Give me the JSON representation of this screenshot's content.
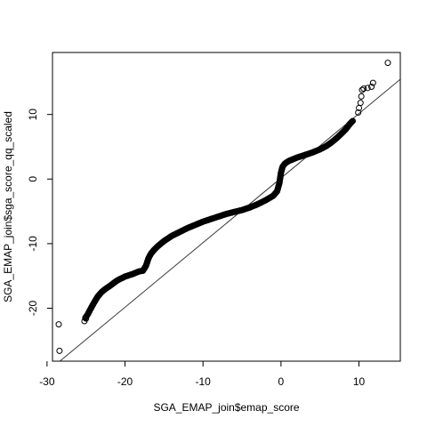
{
  "chart_data": {
    "type": "scatter",
    "title": "",
    "xlabel": "SGA_EMAP_join$emap_score",
    "ylabel": "SGA_EMAP_join$sga_score_qq_scaled",
    "xlim": [
      -29.3,
      15.3
    ],
    "ylim": [
      -28.2,
      19.6
    ],
    "x_ticks": [
      -30,
      -20,
      -10,
      0,
      10
    ],
    "x_tick_labels": [
      "-30",
      "-20",
      "-10",
      "0",
      "10"
    ],
    "y_ticks": [
      -20,
      -10,
      0,
      10
    ],
    "y_tick_labels": [
      "-20",
      "-10",
      "0",
      "10"
    ],
    "grid": false,
    "legend": "none",
    "marker": "open-circle",
    "marker_color": "#000000",
    "reference_line": {
      "slope": 1.0,
      "intercept": 0.15,
      "color": "#3a3a3a"
    },
    "qq_curve": {
      "x": [
        -25.1,
        -24.8,
        -24.5,
        -24.0,
        -23.5,
        -23.0,
        -22.5,
        -22.0,
        -21.0,
        -20.0,
        -19.0,
        -18.2,
        -17.7,
        -17.3,
        -17.0,
        -16.7,
        -16.3,
        -15.8,
        -15.0,
        -14.0,
        -13.0,
        -12.0,
        -11.0,
        -10.0,
        -9.0,
        -8.0,
        -7.0,
        -6.0,
        -5.0,
        -4.0,
        -3.0,
        -2.0,
        -1.0,
        -0.5,
        -0.2,
        0.0,
        0.2,
        0.5,
        1.0,
        2.0,
        3.0,
        4.0,
        5.0,
        5.8,
        6.5,
        7.2,
        7.8,
        8.3,
        8.8,
        9.2
      ],
      "y": [
        -21.5,
        -21.0,
        -20.3,
        -19.2,
        -18.2,
        -17.5,
        -17.0,
        -16.6,
        -15.7,
        -15.1,
        -14.7,
        -14.3,
        -14.2,
        -13.4,
        -12.3,
        -11.6,
        -11.0,
        -10.4,
        -9.6,
        -8.8,
        -8.2,
        -7.6,
        -7.1,
        -6.6,
        -6.2,
        -5.8,
        -5.4,
        -5.1,
        -4.8,
        -4.4,
        -3.9,
        -3.3,
        -2.6,
        -1.9,
        -0.6,
        1.0,
        1.9,
        2.4,
        2.8,
        3.3,
        3.7,
        4.1,
        4.6,
        5.1,
        5.7,
        6.4,
        7.1,
        7.7,
        8.5,
        9.0
      ]
    },
    "outliers": [
      {
        "x": -28.4,
        "y": -26.6
      },
      {
        "x": -28.5,
        "y": -22.5
      },
      {
        "x": -25.2,
        "y": -22.0
      },
      {
        "x": -25.0,
        "y": -21.6
      },
      {
        "x": 9.9,
        "y": 10.3
      },
      {
        "x": 10.0,
        "y": 11.0
      },
      {
        "x": 10.2,
        "y": 11.8
      },
      {
        "x": 10.3,
        "y": 12.8
      },
      {
        "x": 10.4,
        "y": 13.8
      },
      {
        "x": 10.6,
        "y": 14.0
      },
      {
        "x": 11.1,
        "y": 14.1
      },
      {
        "x": 11.6,
        "y": 14.3
      },
      {
        "x": 11.8,
        "y": 14.9
      },
      {
        "x": 13.7,
        "y": 18.0
      }
    ]
  }
}
